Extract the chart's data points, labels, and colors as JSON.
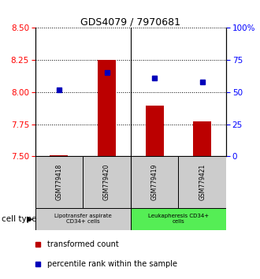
{
  "title": "GDS4079 / 7970681",
  "samples": [
    "GSM779418",
    "GSM779420",
    "GSM779419",
    "GSM779421"
  ],
  "red_values": [
    7.508,
    8.248,
    7.893,
    7.772
  ],
  "blue_percentiles": [
    52,
    65,
    61,
    58
  ],
  "y_min": 7.5,
  "y_max": 8.5,
  "y_ticks": [
    7.5,
    7.75,
    8.0,
    8.25,
    8.5
  ],
  "y_right_ticks": [
    0,
    25,
    50,
    75,
    100
  ],
  "bar_color": "#bb0000",
  "dot_color": "#0000bb",
  "group1_label": "Lipotransfer aspirate\nCD34+ cells",
  "group2_label": "Leukapheresis CD34+\ncells",
  "sample_box_color": "#cccccc",
  "group1_color": "#cccccc",
  "group2_color": "#55ee55",
  "group1_samples": [
    0,
    1
  ],
  "group2_samples": [
    2,
    3
  ],
  "legend_red": "transformed count",
  "legend_blue": "percentile rank within the sample",
  "cell_type_label": "cell type"
}
